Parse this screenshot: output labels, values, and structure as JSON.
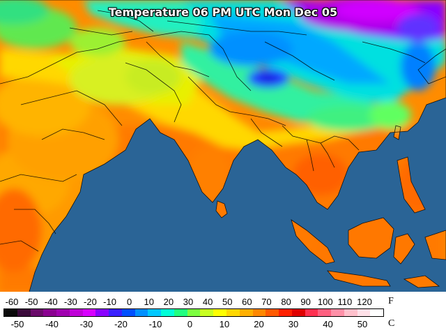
{
  "title": "Temperature 06 PM UTC Mon Dec 05",
  "legend": {
    "fahrenheit_ticks": [
      "-60",
      "-50",
      "-40",
      "-30",
      "-20",
      "-10",
      "0",
      "10",
      "20",
      "30",
      "40",
      "50",
      "60",
      "70",
      "80",
      "90",
      "100",
      "110",
      "120"
    ],
    "celsius_ticks": [
      "-50",
      "-40",
      "-30",
      "-20",
      "-10",
      "0",
      "10",
      "20",
      "30",
      "40",
      "50"
    ],
    "fahrenheit_unit": "F",
    "celsius_unit": "C",
    "colors": [
      "#0a0a0a",
      "#3a0a3a",
      "#6a0a6a",
      "#8a0090",
      "#a000b0",
      "#c000d8",
      "#d800ff",
      "#8a00ff",
      "#3a20ff",
      "#0050ff",
      "#0090ff",
      "#00c8ff",
      "#00ffd8",
      "#20ff80",
      "#7cff40",
      "#c8ff20",
      "#ffff00",
      "#ffd800",
      "#ffb000",
      "#ff8800",
      "#ff5a00",
      "#ff2000",
      "#e00000",
      "#ff3050",
      "#ff6080",
      "#ff90a8",
      "#ffc0cc",
      "#ffe0e8",
      "#ffffff"
    ]
  },
  "map": {
    "ocean_color": "#2a6496",
    "region_labels": []
  }
}
